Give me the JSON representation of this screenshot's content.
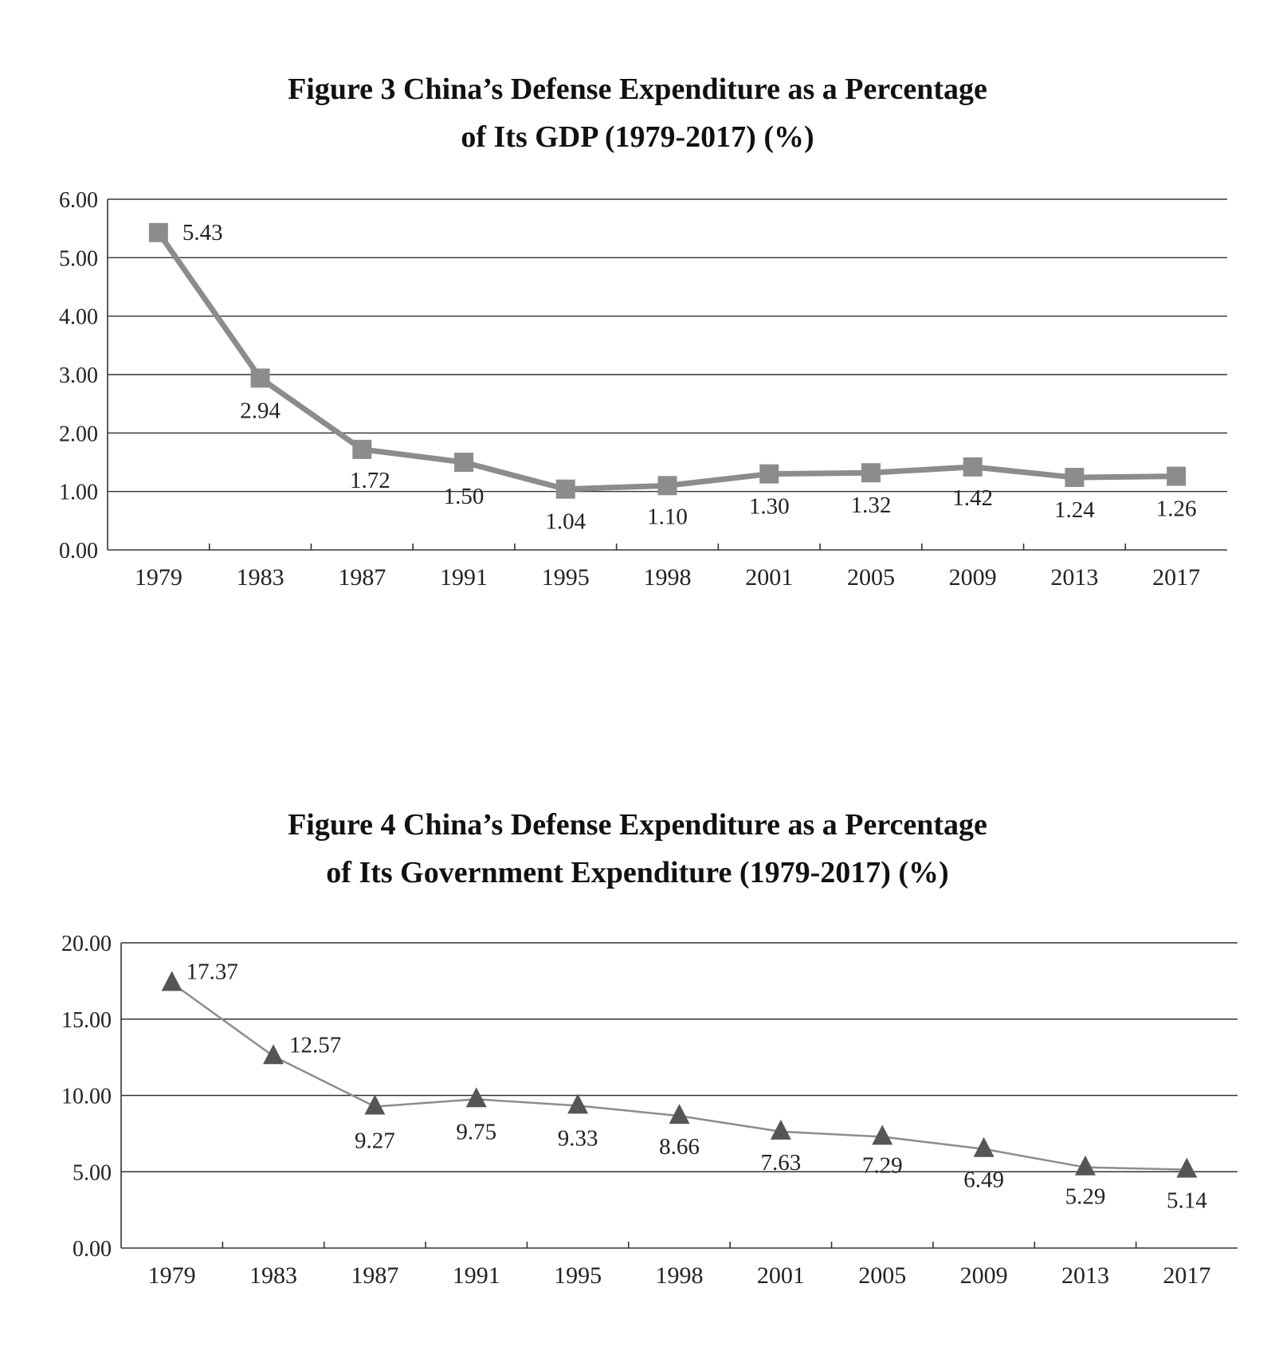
{
  "chart_data": [
    {
      "type": "line",
      "title": "Figure 3 China’s Defense Expenditure as a Percentage",
      "title_line2": "of Its GDP (1979-2017) (%)",
      "categories": [
        "1979",
        "1983",
        "1987",
        "1991",
        "1995",
        "1998",
        "2001",
        "2005",
        "2009",
        "2013",
        "2017"
      ],
      "series": [
        {
          "values": [
            5.43,
            2.94,
            1.72,
            1.5,
            1.04,
            1.1,
            1.3,
            1.32,
            1.42,
            1.24,
            1.26
          ]
        }
      ],
      "data_labels": [
        "5.43",
        "2.94",
        "1.72",
        "1.50",
        "1.04",
        "1.10",
        "1.30",
        "1.32",
        "1.42",
        "1.24",
        "1.26"
      ],
      "y_ticks": [
        "0.00",
        "1.00",
        "2.00",
        "3.00",
        "4.00",
        "5.00",
        "6.00"
      ],
      "ylim": [
        0,
        6
      ],
      "marker": "square",
      "line_color": "#8c8c8c",
      "marker_color": "#8c8c8c",
      "grid": true,
      "legend": "none"
    },
    {
      "type": "line",
      "title": "Figure 4 China’s Defense Expenditure as a Percentage",
      "title_line2": "of Its Government Expenditure (1979-2017) (%)",
      "categories": [
        "1979",
        "1983",
        "1987",
        "1991",
        "1995",
        "1998",
        "2001",
        "2005",
        "2009",
        "2013",
        "2017"
      ],
      "series": [
        {
          "values": [
            17.37,
            12.57,
            9.27,
            9.75,
            9.33,
            8.66,
            7.63,
            7.29,
            6.49,
            5.29,
            5.14
          ]
        }
      ],
      "data_labels": [
        "17.37",
        "12.57",
        "9.27",
        "9.75",
        "9.33",
        "8.66",
        "7.63",
        "7.29",
        "6.49",
        "5.29",
        "5.14"
      ],
      "y_ticks": [
        "0.00",
        "5.00",
        "10.00",
        "15.00",
        "20.00"
      ],
      "ylim": [
        0,
        20
      ],
      "marker": "triangle",
      "line_color": "#8c8c8c",
      "marker_color": "#555555",
      "grid": true,
      "legend": "none"
    }
  ]
}
